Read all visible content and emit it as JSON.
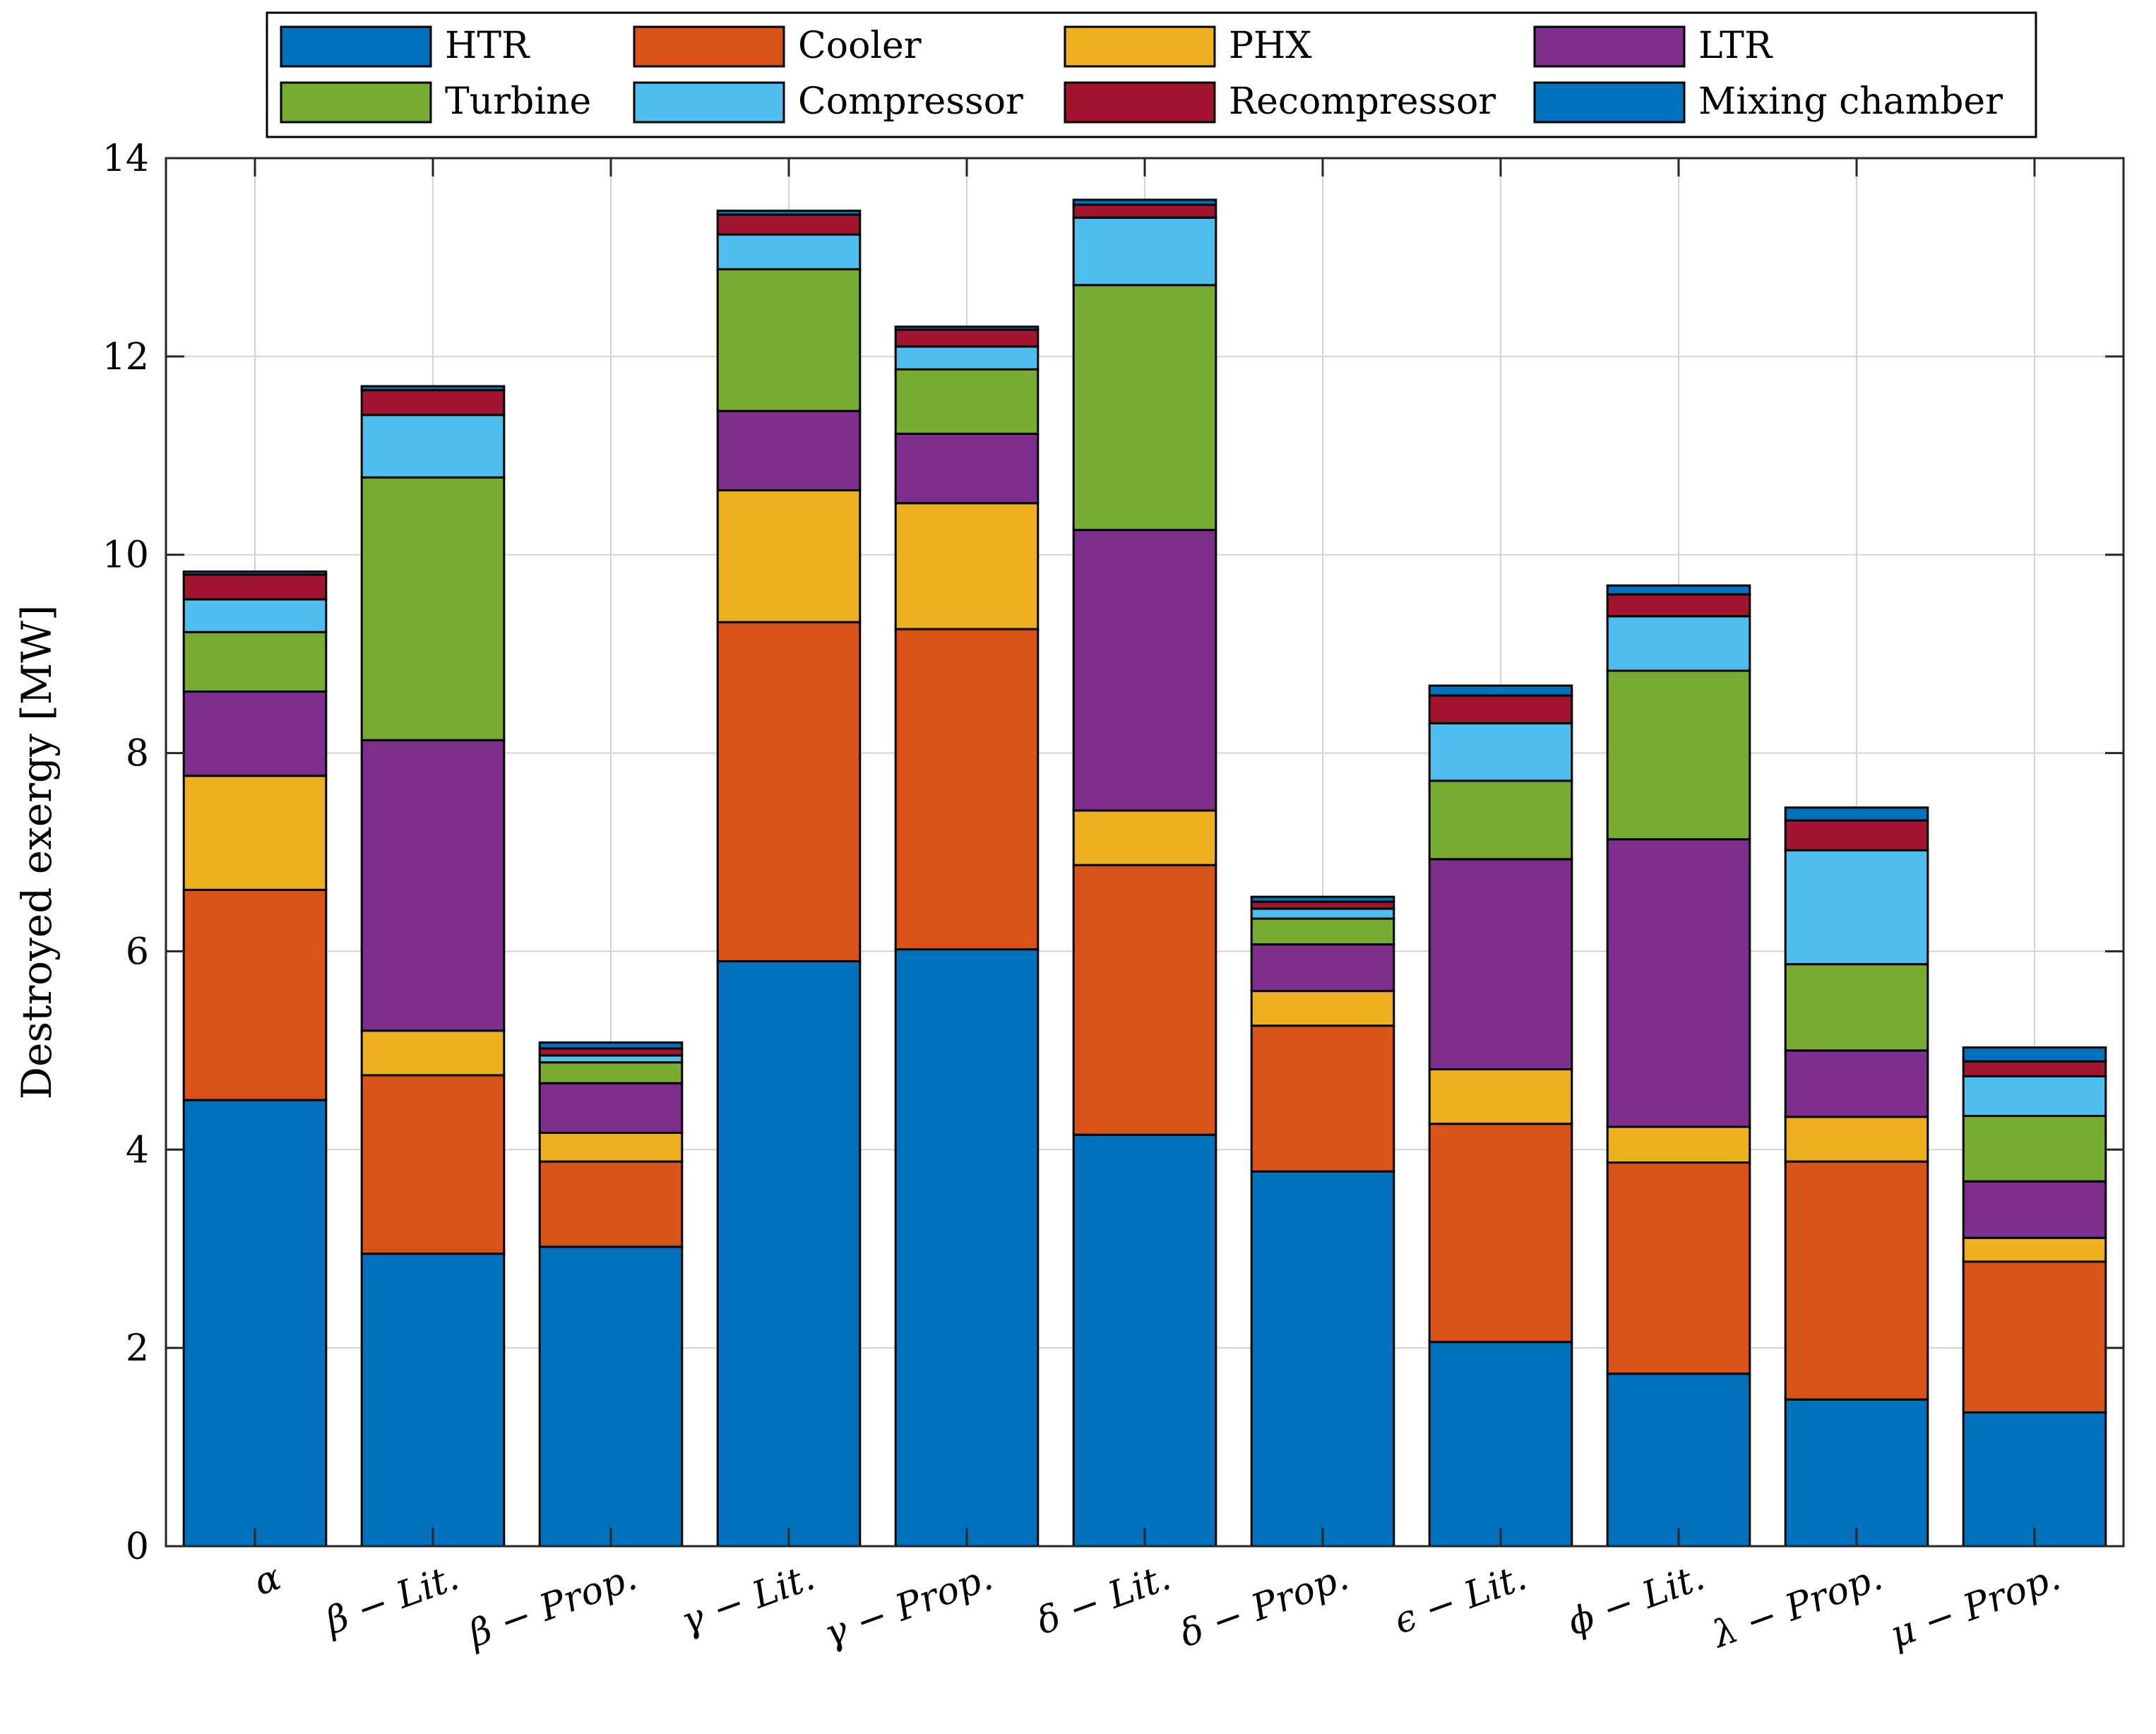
{
  "chart_data": {
    "type": "bar",
    "stacked": true,
    "title": "",
    "xlabel": "",
    "ylabel": "Destroyed exergy [MW]",
    "ylim": [
      0,
      14
    ],
    "yticks": [
      0,
      2,
      4,
      6,
      8,
      10,
      12,
      14
    ],
    "grid": true,
    "legend_position": "top",
    "categories": [
      "α",
      "β − Lit.",
      "β − Prop.",
      "γ − Lit.",
      "γ − Prop.",
      "δ − Lit.",
      "δ − Prop.",
      "ϵ − Lit.",
      "ϕ − Lit.",
      "λ − Prop.",
      "μ − Prop."
    ],
    "series": [
      {
        "name": "HTR",
        "color": "#0072BD",
        "values": [
          4.5,
          2.95,
          3.02,
          5.9,
          6.02,
          4.15,
          3.78,
          2.06,
          1.74,
          1.48,
          1.35
        ]
      },
      {
        "name": "Cooler",
        "color": "#D95319",
        "values": [
          2.12,
          1.8,
          0.86,
          3.42,
          3.23,
          2.72,
          1.47,
          2.2,
          2.13,
          2.4,
          1.52
        ]
      },
      {
        "name": "PHX",
        "color": "#EDB120",
        "values": [
          1.15,
          0.45,
          0.29,
          1.33,
          1.27,
          0.55,
          0.35,
          0.55,
          0.36,
          0.45,
          0.24
        ]
      },
      {
        "name": "LTR",
        "color": "#7E2F8E",
        "values": [
          0.85,
          2.93,
          0.5,
          0.8,
          0.7,
          2.83,
          0.47,
          2.12,
          2.9,
          0.67,
          0.57
        ]
      },
      {
        "name": "Turbine",
        "color": "#77AC30",
        "values": [
          0.6,
          2.65,
          0.21,
          1.43,
          0.65,
          2.47,
          0.26,
          0.79,
          1.7,
          0.87,
          0.66
        ]
      },
      {
        "name": "Compressor",
        "color": "#4DBEEE",
        "values": [
          0.33,
          0.63,
          0.07,
          0.35,
          0.23,
          0.68,
          0.1,
          0.58,
          0.55,
          1.15,
          0.4
        ]
      },
      {
        "name": "Recompressor",
        "color": "#A2142F",
        "values": [
          0.25,
          0.25,
          0.07,
          0.2,
          0.17,
          0.13,
          0.07,
          0.28,
          0.22,
          0.3,
          0.15
        ]
      },
      {
        "name": "Mixing chamber",
        "color": "#0072BD",
        "values": [
          0.03,
          0.04,
          0.06,
          0.04,
          0.03,
          0.05,
          0.05,
          0.1,
          0.09,
          0.13,
          0.14
        ]
      }
    ]
  }
}
